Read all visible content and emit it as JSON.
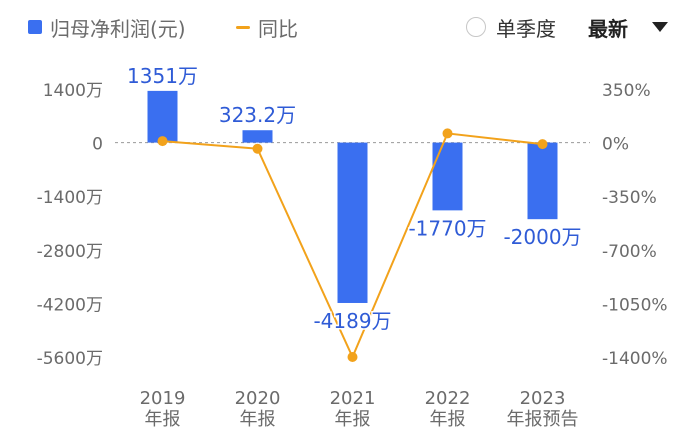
{
  "legend": {
    "bar_label": "归母净利润(元)",
    "line_label": "同比"
  },
  "controls": {
    "single_quarter_label": "单季度",
    "sort_label": "最新"
  },
  "colors": {
    "bar": "#3a6ff0",
    "line": "#f2a21b",
    "axis_text": "#6b6b6b",
    "bar_label_text": "#2f5bd6"
  },
  "chart_data": {
    "type": "bar",
    "categories": [
      [
        "2019",
        "年报"
      ],
      [
        "2020",
        "年报"
      ],
      [
        "2021",
        "年报"
      ],
      [
        "2022",
        "年报"
      ],
      [
        "2023",
        "年报预告"
      ]
    ],
    "series": [
      {
        "name": "归母净利润(元)",
        "type": "bar",
        "axis": "left",
        "values": [
          1351,
          323.2,
          -4189,
          -1770,
          -2000
        ],
        "labels": [
          "1351万",
          "323.2万",
          "-4189万",
          "-1770万",
          "-2000万"
        ]
      },
      {
        "name": "同比",
        "type": "line",
        "axis": "right",
        "values": [
          10,
          -40,
          -1400,
          60,
          -10
        ]
      }
    ],
    "left_axis": {
      "ticks": [
        1400,
        0,
        -1400,
        -2800,
        -4200,
        -5600
      ],
      "tick_labels": [
        "1400万",
        "0",
        "-1400万",
        "-2800万",
        "-4200万",
        "-5600万"
      ],
      "range": [
        -5600,
        1400
      ]
    },
    "right_axis": {
      "ticks": [
        350,
        0,
        -350,
        -700,
        -1050,
        -1400
      ],
      "tick_labels": [
        "350%",
        "0%",
        "-350%",
        "-700%",
        "-1050%",
        "-1400%"
      ],
      "range": [
        -1400,
        350
      ]
    },
    "zero_line": "dashed"
  }
}
